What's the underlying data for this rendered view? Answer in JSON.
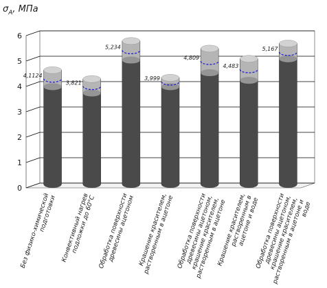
{
  "chart_data": {
    "type": "bar",
    "ylabel_symbol": "σ",
    "ylabel_sub": "A",
    "ylabel_unit": ", МПа",
    "ylim": [
      0,
      6
    ],
    "yticks": [
      "0",
      "1",
      "2",
      "3",
      "4",
      "5",
      "6"
    ],
    "grid": true,
    "categories": [
      [
        "Без физико-химической",
        "подготовки"
      ],
      [
        "Конвективный нагрев",
        "подложки до 60°С"
      ],
      [
        "Обработка поверхности",
        "древесины ацетоном"
      ],
      [
        "Крашение красителем,",
        "растворенным в ацетоне"
      ],
      [
        "Обработка поверхности",
        "древесины ацетоном,",
        "крашение красителем,",
        "растворенным в ацетоне"
      ],
      [
        "Крашение красителем,",
        "растворенным в",
        "ацетоне и воде"
      ],
      [
        "Обработка поверхности",
        "древесины ацетоном,",
        "крашение красителем,",
        "растворенным в ацетоне и",
        "воде"
      ]
    ],
    "values": [
      4.1124,
      3.821,
      5.234,
      3.999,
      4.809,
      4.483,
      5.167
    ],
    "value_labels": [
      "4,1124",
      "3,821",
      "5,234",
      "3,999",
      "4,809",
      "4,483",
      "5,167"
    ],
    "upper": [
      4.45,
      4.1,
      5.6,
      4.15,
      5.3,
      4.9,
      5.5
    ],
    "lower": [
      3.8,
      3.55,
      4.85,
      3.8,
      4.35,
      4.05,
      4.9
    ],
    "colors": {
      "bar_dark": "#4a4a4a",
      "bar_light": "#b5b5b5",
      "bar_top": "#d2d2d2",
      "mean_line": "#1f1fd6",
      "grid": "#000000",
      "wall": "#ffffff"
    }
  }
}
